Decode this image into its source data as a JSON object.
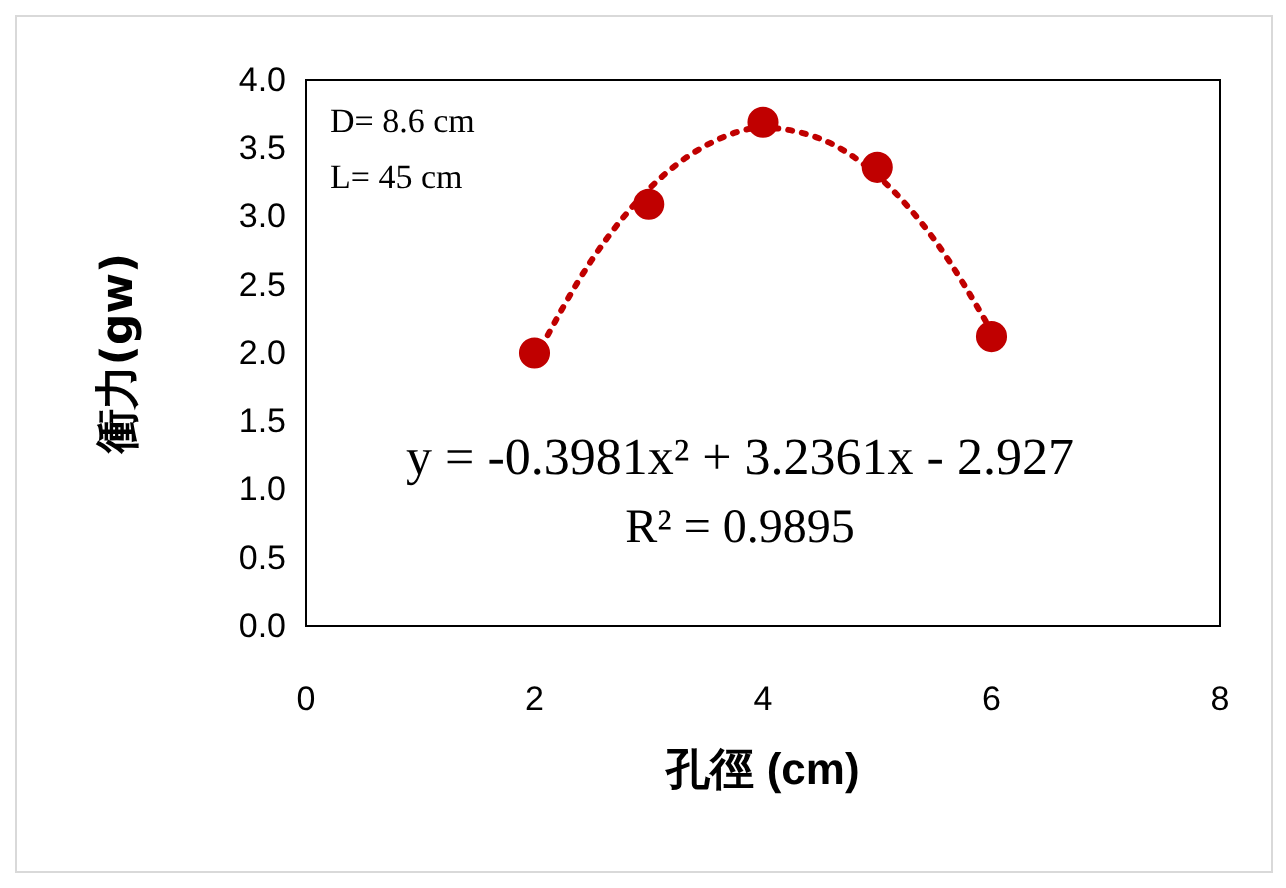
{
  "chart_data": {
    "type": "scatter",
    "xlabel": "孔徑 (cm)",
    "ylabel": "衝力(gw)",
    "xlim": [
      0,
      8
    ],
    "xticks": [
      0,
      2,
      4,
      6,
      8
    ],
    "ylim": [
      0,
      4
    ],
    "yticks": [
      {
        "value": 0,
        "label": "0.0"
      },
      {
        "value": 0.5,
        "label": "0.5"
      },
      {
        "value": 1,
        "label": "1.0"
      },
      {
        "value": 1.5,
        "label": "1.5"
      },
      {
        "value": 2,
        "label": "2.0"
      },
      {
        "value": 2.5,
        "label": "2.5"
      },
      {
        "value": 3,
        "label": "3.0"
      },
      {
        "value": 3.5,
        "label": "3.5"
      },
      {
        "value": 4,
        "label": "4.0"
      }
    ],
    "grid": false,
    "series": [
      {
        "marker": "circle",
        "color": "#c00000",
        "x": [
          2,
          3,
          4,
          5,
          6
        ],
        "values": [
          2.0,
          3.09,
          3.69,
          3.36,
          2.12
        ]
      },
      {
        "type": "line",
        "color": "#c00000",
        "line_style": "dotted",
        "x": [
          2,
          2.5,
          3,
          3.5,
          4,
          4.5,
          5,
          5.5,
          6
        ],
        "values": [
          1.95,
          2.68,
          3.2,
          3.52,
          3.65,
          3.57,
          3.3,
          2.83,
          2.16
        ]
      }
    ],
    "annotations": [
      "D= 8.6 cm",
      "L= 45 cm",
      "y = -0.3981x² + 3.2361x - 2.927",
      "R² = 0.9895"
    ]
  }
}
